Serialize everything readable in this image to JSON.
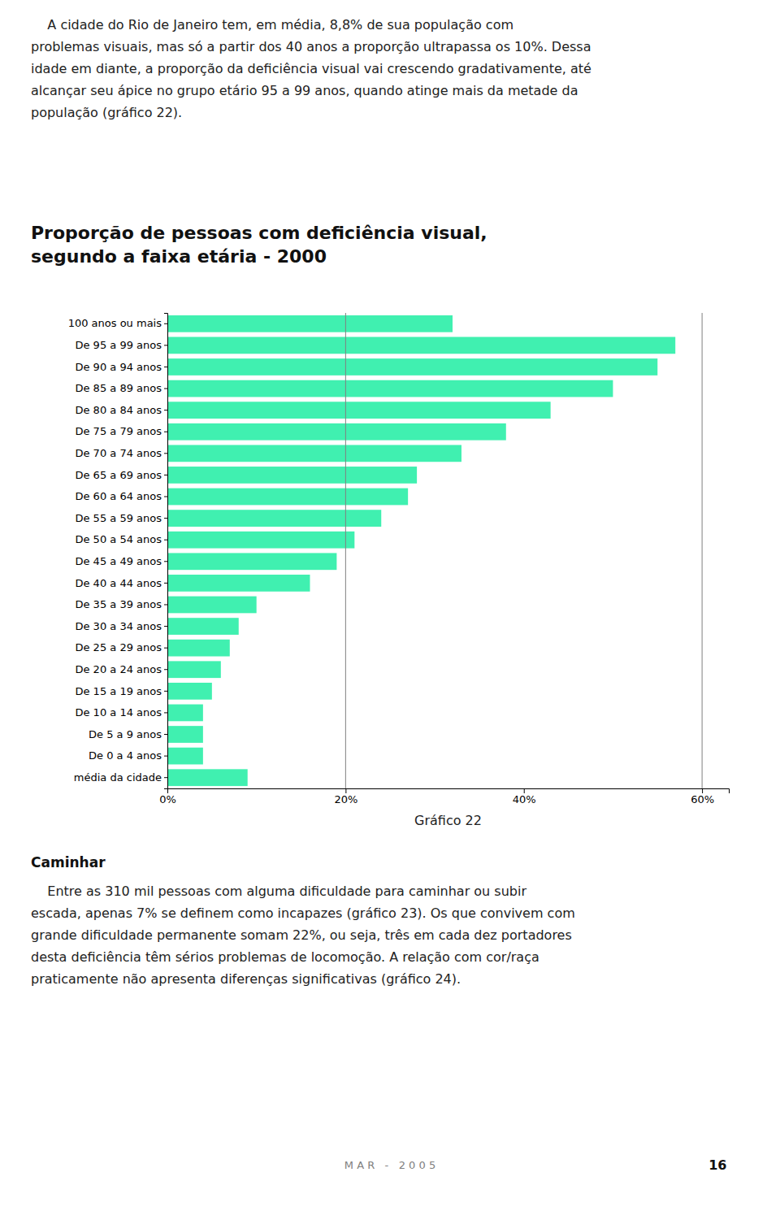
{
  "chart_data": {
    "type": "bar",
    "orientation": "horizontal",
    "title": "Proporção de pessoas com deficiência visual,\nsegundo a faixa etária - 2000",
    "categories": [
      "100 anos ou mais",
      "De 95 a 99 anos",
      "De 90 a 94 anos",
      "De 85 a 89 anos",
      "De 80 a 84 anos",
      "De 75 a 79 anos",
      "De 70 a 74 anos",
      "De 65 a 69 anos",
      "De 60 a 64 anos",
      "De 55 a 59 anos",
      "De 50 a 54 anos",
      "De 45 a 49 anos",
      "De 40 a 44 anos",
      "De 35 a 39 anos",
      "De 30 a 34 anos",
      "De 25 a 29 anos",
      "De 20 a 24 anos",
      "De 15 a 19 anos",
      "De 10 a 14 anos",
      "De 5 a 9 anos",
      "De 0 a 4 anos",
      "média da cidade"
    ],
    "values": [
      32,
      57,
      55,
      50,
      43,
      38,
      33,
      28,
      27,
      24,
      21,
      19,
      16,
      10,
      8,
      7,
      6,
      5,
      4,
      4,
      4,
      9
    ],
    "color": "#40F0B0",
    "xlim": [
      0,
      63
    ],
    "xticks": [
      {
        "value": 0,
        "label": "0%"
      },
      {
        "value": 20,
        "label": "20%"
      },
      {
        "value": 40,
        "label": "40%"
      },
      {
        "value": 60,
        "label": "60%"
      }
    ],
    "reference_lines": [
      20,
      60
    ],
    "grid": false,
    "annotations": [
      "    A cidade do Rio de Janeiro tem, em média, 8,8% de sua população com\nproblemas visuais, mas só a partir dos 40 anos a proporção ultrapassa os 10%. Dessa\nidade em diante, a proporção da deficiência visual vai crescendo gradativamente, até\nalcançar seu ápice no grupo etário 95 a 99 anos, quando atinge mais da metade da\npopulação (gráfico 22).",
      "Gráfico 22",
      "Caminhar",
      "    Entre as 310 mil pessoas com alguma dificuldade para caminhar ou subir\nescada, apenas 7% se definem como incapazes (gráfico 23). Os que convivem com\ngrande dificuldade permanente somam 22%, ou seja, três em cada dez portadores\ndesta deficiência têm sérios problemas de locomoção. A relação com cor/raça\npraticamente não apresenta diferenças significativas (gráfico 24).",
      "M A R   -   2 0 0 5",
      "16"
    ]
  }
}
